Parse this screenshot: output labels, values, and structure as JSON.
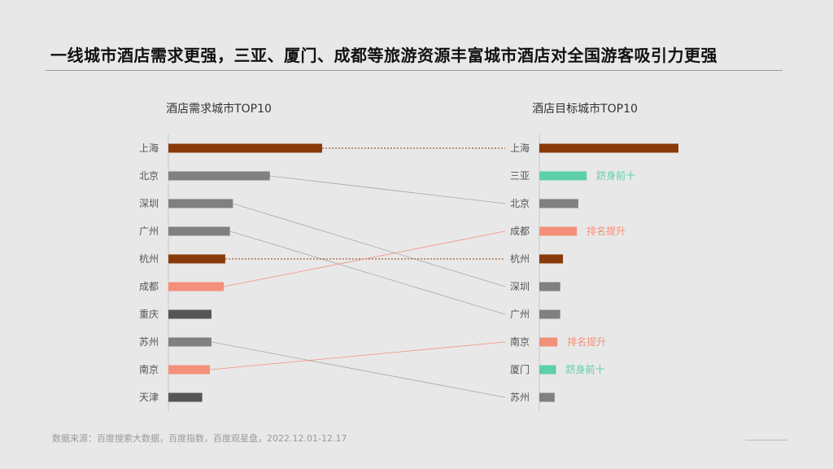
{
  "title": "一线城市酒店需求更强，三亚、厦门、成都等旅游资源丰富城市酒店对全国游客吸引力更强",
  "footnote": "数据来源：百度搜索大数据，百度指数，百度观星盘，2022.12.01-12.17",
  "colors": {
    "highlight": "#8a3a0a",
    "gray": "#808080",
    "dark": "#555555",
    "rise": "#f4907a",
    "new": "#5dcfaa"
  },
  "chart_data": [
    {
      "type": "bar",
      "orientation": "horizontal",
      "title": "酒店需求城市TOP10",
      "categories": [
        "上海",
        "北京",
        "深圳",
        "广州",
        "杭州",
        "成都",
        "重庆",
        "苏州",
        "南京",
        "天津"
      ],
      "values": [
        100,
        66,
        42,
        40,
        37,
        36,
        28,
        28,
        27,
        22
      ],
      "bar_colors": [
        "highlight",
        "gray",
        "gray",
        "gray",
        "highlight",
        "rise",
        "dark",
        "gray",
        "rise",
        "dark"
      ]
    },
    {
      "type": "bar",
      "orientation": "horizontal",
      "title": "酒店目标城市TOP10",
      "categories": [
        "上海",
        "三亚",
        "北京",
        "成都",
        "杭州",
        "深圳",
        "广州",
        "南京",
        "厦门",
        "苏州"
      ],
      "values": [
        100,
        34,
        28,
        27,
        17,
        15,
        15,
        13,
        12,
        11
      ],
      "bar_colors": [
        "highlight",
        "new",
        "gray",
        "rise",
        "highlight",
        "gray",
        "gray",
        "rise",
        "new",
        "gray"
      ],
      "annotations": [
        {
          "city": "三亚",
          "text": "跻身前十",
          "color": "new"
        },
        {
          "city": "成都",
          "text": "排名提升",
          "color": "rise"
        },
        {
          "city": "南京",
          "text": "排名提升",
          "color": "rise"
        },
        {
          "city": "厦门",
          "text": "跻身前十",
          "color": "new"
        }
      ]
    }
  ],
  "links": [
    {
      "from": "上海",
      "to": "上海",
      "color": "highlight",
      "style": "dotted"
    },
    {
      "from": "北京",
      "to": "北京",
      "color": "gray",
      "style": "thin"
    },
    {
      "from": "深圳",
      "to": "深圳",
      "color": "gray",
      "style": "thin"
    },
    {
      "from": "广州",
      "to": "广州",
      "color": "gray",
      "style": "thin"
    },
    {
      "from": "杭州",
      "to": "杭州",
      "color": "highlight",
      "style": "dotted"
    },
    {
      "from": "成都",
      "to": "成都",
      "color": "rise",
      "style": "thin"
    },
    {
      "from": "苏州",
      "to": "苏州",
      "color": "gray",
      "style": "thin"
    },
    {
      "from": "南京",
      "to": "南京",
      "color": "rise",
      "style": "thin"
    }
  ]
}
